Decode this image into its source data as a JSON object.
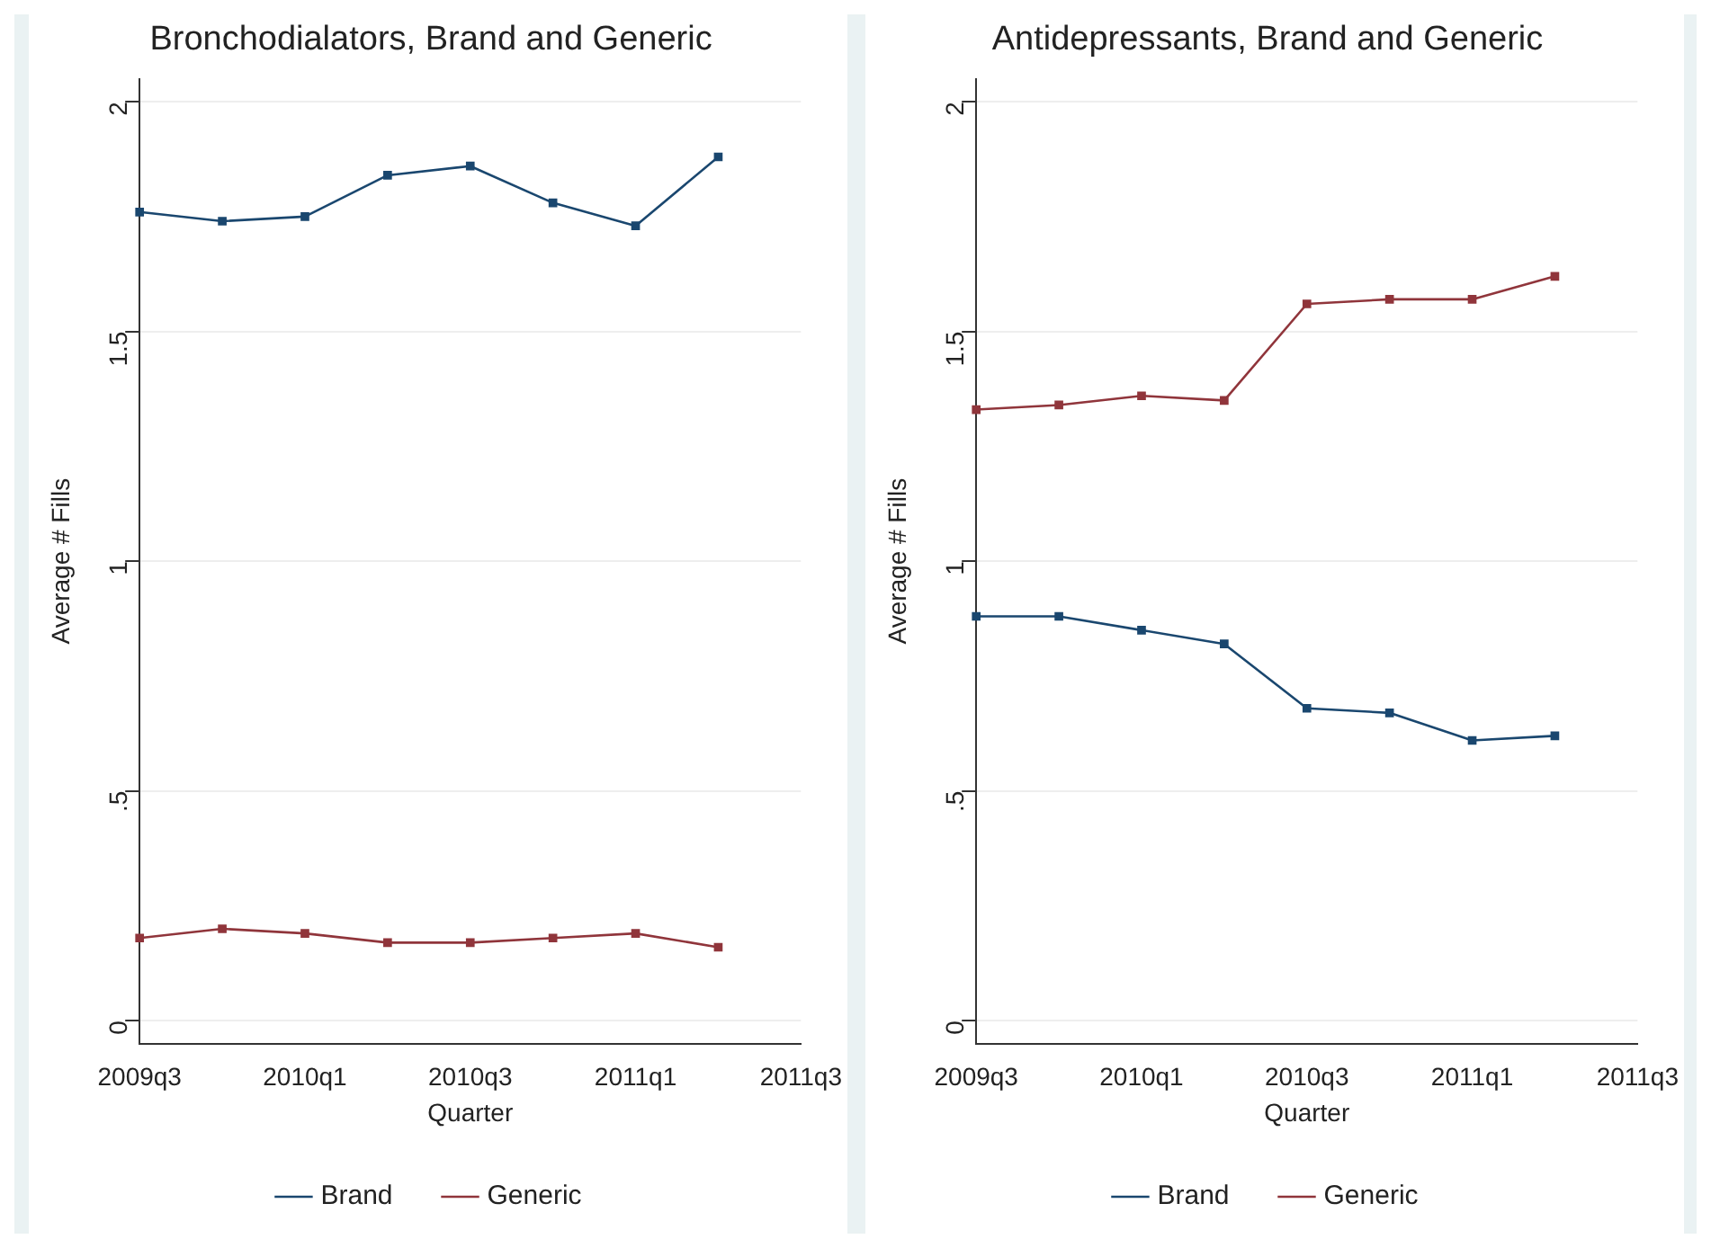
{
  "chart_data": [
    {
      "type": "line",
      "title": "Bronchodialators, Brand and Generic",
      "xlabel": "Quarter",
      "ylabel": "Average # Fills",
      "categories": [
        "2009q3",
        null,
        "2010q1",
        null,
        "2010q3",
        null,
        "2011q1",
        null,
        "2011q3"
      ],
      "series": [
        {
          "name": "Brand",
          "color": "#1a476f",
          "values": [
            1.76,
            1.74,
            1.75,
            1.84,
            1.86,
            1.78,
            1.73,
            1.88,
            null
          ]
        },
        {
          "name": "Generic",
          "color": "#90353b",
          "values": [
            0.18,
            0.2,
            0.19,
            0.17,
            0.17,
            0.18,
            0.19,
            0.16,
            null
          ]
        }
      ],
      "ylim": [
        -0.05,
        2.05
      ],
      "yticks": [
        0,
        {
          "value": 0.5,
          "label": ".5"
        },
        1,
        1.5,
        2
      ],
      "grid": "y",
      "legend": "bottom",
      "marker": "square",
      "line_style": "solid"
    },
    {
      "type": "line",
      "title": "Antidepressants, Brand and Generic",
      "xlabel": "Quarter",
      "ylabel": "Average # Fills",
      "categories": [
        "2009q3",
        null,
        "2010q1",
        null,
        "2010q3",
        null,
        "2011q1",
        null,
        "2011q3"
      ],
      "series": [
        {
          "name": "Brand",
          "color": "#1a476f",
          "values": [
            0.88,
            0.88,
            0.85,
            0.82,
            0.68,
            0.67,
            0.61,
            0.62,
            null
          ]
        },
        {
          "name": "Generic",
          "color": "#90353b",
          "values": [
            1.33,
            1.34,
            1.36,
            1.35,
            1.56,
            1.57,
            1.57,
            1.62,
            null
          ]
        }
      ],
      "ylim": [
        -0.05,
        2.05
      ],
      "yticks": [
        0,
        {
          "value": 0.5,
          "label": ".5"
        },
        1,
        1.5,
        2
      ],
      "grid": "y",
      "legend": "bottom",
      "marker": "square",
      "line_style": "solid"
    }
  ]
}
